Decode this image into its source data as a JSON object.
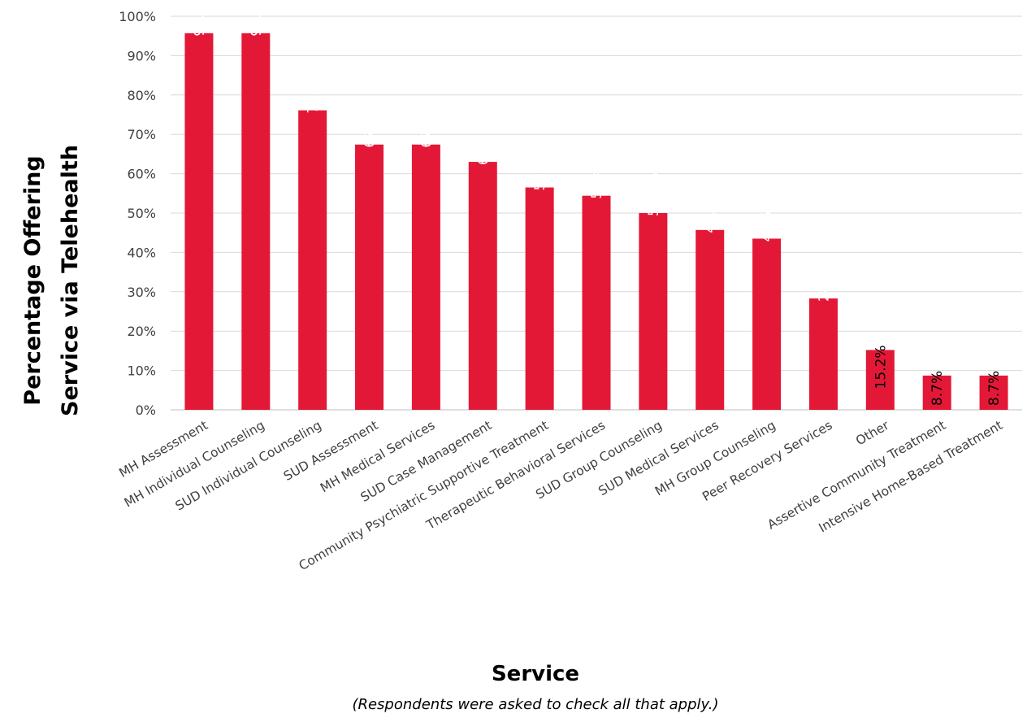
{
  "chart_data": {
    "type": "bar",
    "categories": [
      "MH Assessment",
      "MH Individual Counseling",
      "SUD Individual Counseling",
      "SUD Assessment",
      "MH Medical Services",
      "SUD Case Management",
      "Community Psychiatric Supportive Treatment",
      "Therapeutic Behavioral Services",
      "SUD Group Counseling",
      "SUD Medical Services",
      "MH Group Counseling",
      "Peer Recovery Services",
      "Other",
      "Assertive Community Treatment",
      "Intensive Home-Based Treatment"
    ],
    "values": [
      95.7,
      95.7,
      76.1,
      67.4,
      67.4,
      63.0,
      56.5,
      54.4,
      50.0,
      45.7,
      43.5,
      28.3,
      15.2,
      8.7,
      8.7
    ],
    "data_labels": [
      "95.7%",
      "95.7%",
      "76.1%",
      "67.4%",
      "67.4%",
      "63.0%",
      "56.5%",
      "54.4%",
      "50.0%",
      "45.7%",
      "43.5%",
      "28.3%",
      "15.2%",
      "8.7%",
      "8.7%"
    ],
    "ylabel_lines": [
      "Percentage Offering",
      "Service via Telehealth"
    ],
    "xlabel": "Service",
    "note": "(Respondents were asked to check all that apply.)",
    "ylim": [
      0,
      100
    ],
    "yticks": [
      "0%",
      "10%",
      "20%",
      "30%",
      "40%",
      "50%",
      "60%",
      "70%",
      "80%",
      "90%",
      "100%"
    ],
    "grid": true,
    "legend": "none",
    "bar_color": "#E31837",
    "label_inside_color": "#FFFFFF",
    "label_outside_color": "#000000",
    "grid_color": "#D9D9D9"
  }
}
